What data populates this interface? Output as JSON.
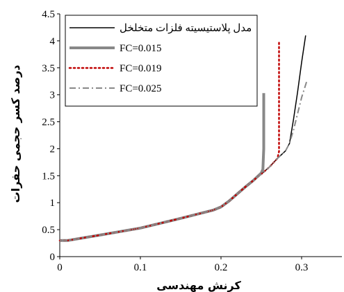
{
  "chart_data": {
    "type": "line",
    "xlabel": "کرنش مهندسی",
    "ylabel": "درصد کسر حجمی حفرات",
    "xlim": [
      0,
      0.35
    ],
    "ylim": [
      0,
      4.5
    ],
    "x_ticks": [
      "0",
      "0.1",
      "0.2",
      "0.3"
    ],
    "x_tick_values": [
      0,
      0.1,
      0.2,
      0.3
    ],
    "y_ticks": [
      "0",
      "0.5",
      "1",
      "1.5",
      "2",
      "2.5",
      "3",
      "3.5",
      "4",
      "4.5"
    ],
    "y_tick_values": [
      0,
      0.5,
      1,
      1.5,
      2,
      2.5,
      3,
      3.5,
      4,
      4.5
    ],
    "legend_position": "top-left inside plot",
    "series": [
      {
        "name": "مدل پلاستیسیته فلزات متخلخل",
        "style": "solid",
        "color": "#000000",
        "x": [
          0,
          0.01,
          0.05,
          0.1,
          0.15,
          0.19,
          0.2,
          0.21,
          0.22,
          0.23,
          0.24,
          0.25,
          0.26,
          0.27,
          0.28,
          0.285,
          0.29,
          0.295,
          0.3,
          0.305
        ],
        "y": [
          0.3,
          0.3,
          0.4,
          0.53,
          0.71,
          0.86,
          0.92,
          1.03,
          1.16,
          1.29,
          1.41,
          1.53,
          1.66,
          1.82,
          1.96,
          2.1,
          2.55,
          3.05,
          3.6,
          4.1
        ]
      },
      {
        "name": "FC=0.015",
        "style": "thick",
        "color": "#888888",
        "x": [
          0,
          0.01,
          0.05,
          0.1,
          0.15,
          0.19,
          0.2,
          0.21,
          0.22,
          0.23,
          0.24,
          0.25,
          0.252,
          0.253,
          0.253
        ],
        "y": [
          0.3,
          0.3,
          0.4,
          0.53,
          0.71,
          0.86,
          0.92,
          1.03,
          1.16,
          1.29,
          1.41,
          1.55,
          1.62,
          2.0,
          3.03
        ]
      },
      {
        "name": "FC=0.019",
        "style": "dotted",
        "color": "#c00000",
        "x": [
          0,
          0.01,
          0.05,
          0.1,
          0.15,
          0.19,
          0.2,
          0.21,
          0.22,
          0.23,
          0.24,
          0.25,
          0.26,
          0.27,
          0.272,
          0.272
        ],
        "y": [
          0.3,
          0.3,
          0.4,
          0.53,
          0.71,
          0.86,
          0.92,
          1.03,
          1.16,
          1.29,
          1.41,
          1.53,
          1.66,
          1.82,
          1.95,
          4.0
        ]
      },
      {
        "name": "FC=0.025",
        "style": "dashdot",
        "color": "#888888",
        "x": [
          0,
          0.01,
          0.05,
          0.1,
          0.15,
          0.19,
          0.2,
          0.21,
          0.22,
          0.23,
          0.24,
          0.25,
          0.26,
          0.27,
          0.28,
          0.285,
          0.29,
          0.295,
          0.3,
          0.307
        ],
        "y": [
          0.3,
          0.3,
          0.4,
          0.53,
          0.71,
          0.86,
          0.92,
          1.03,
          1.16,
          1.29,
          1.41,
          1.53,
          1.66,
          1.82,
          1.96,
          2.1,
          2.35,
          2.65,
          2.95,
          3.28
        ]
      }
    ]
  }
}
